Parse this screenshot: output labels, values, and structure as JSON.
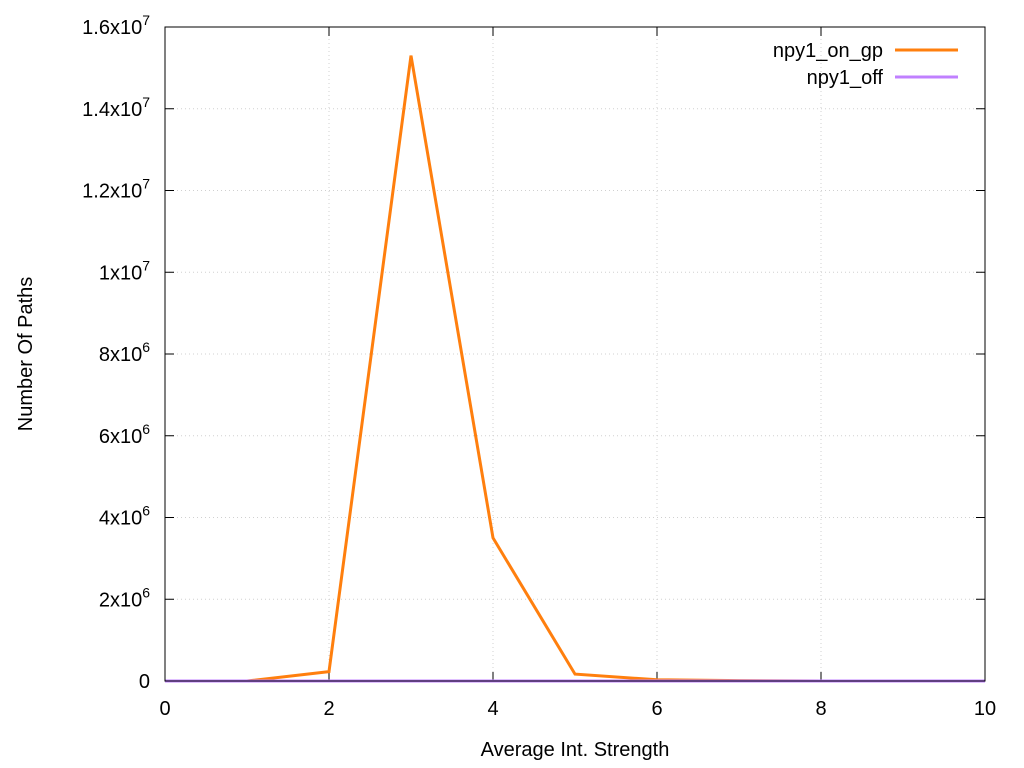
{
  "chart_data": {
    "type": "line",
    "title": "",
    "xlabel": "Average Int. Strength",
    "ylabel": "Number Of Paths",
    "xlim": [
      0,
      10
    ],
    "ylim": [
      0,
      16000000
    ],
    "grid": true,
    "legend_position": "top-right",
    "x_ticks": [
      0,
      2,
      4,
      6,
      8,
      10
    ],
    "x_tick_labels": [
      "0",
      "2",
      "4",
      "6",
      "8",
      "10"
    ],
    "y_ticks": [
      0,
      2000000,
      4000000,
      6000000,
      8000000,
      10000000,
      12000000,
      14000000,
      16000000
    ],
    "y_tick_labels": [
      {
        "base": "0",
        "exp": ""
      },
      {
        "base": "2x10",
        "exp": "6"
      },
      {
        "base": "4x10",
        "exp": "6"
      },
      {
        "base": "6x10",
        "exp": "6"
      },
      {
        "base": "8x10",
        "exp": "6"
      },
      {
        "base": "1x10",
        "exp": "7"
      },
      {
        "base": "1.2x10",
        "exp": "7"
      },
      {
        "base": "1.4x10",
        "exp": "7"
      },
      {
        "base": "1.6x10",
        "exp": "7"
      }
    ],
    "series": [
      {
        "name": "npy1_on_gp",
        "color": "#ff7f0e",
        "x": [
          0,
          1,
          2,
          3,
          4,
          5,
          6,
          7,
          8,
          9,
          10
        ],
        "y": [
          0,
          0,
          230000,
          15300000,
          3500000,
          170000,
          30000,
          10000,
          0,
          0,
          0
        ]
      },
      {
        "name": "npy1_off",
        "color": "#c080ff",
        "x": [
          0,
          1,
          2,
          3,
          4,
          5,
          6,
          7,
          8,
          9,
          10
        ],
        "y": [
          0,
          0,
          0,
          0,
          0,
          0,
          0,
          0,
          0,
          0,
          0
        ]
      }
    ]
  }
}
